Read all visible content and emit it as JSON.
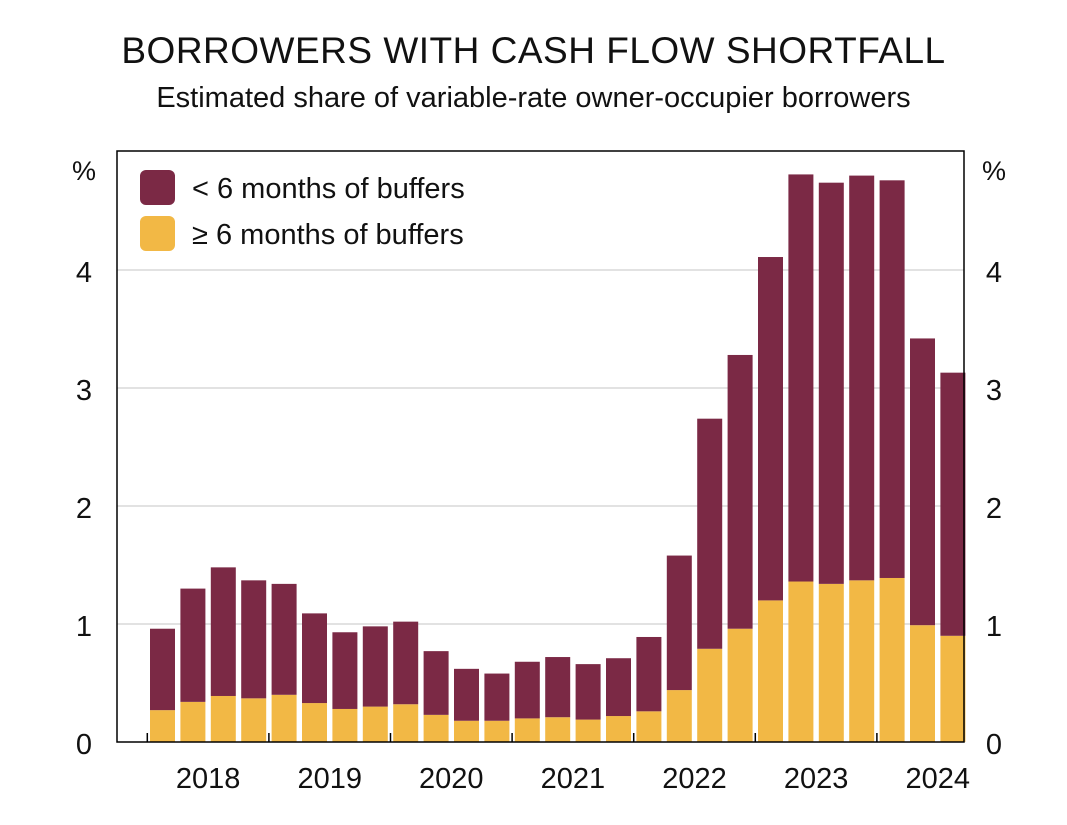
{
  "chart_data": {
    "type": "bar",
    "stacked": true,
    "title": "BORROWERS WITH CASH FLOW SHORTFALL",
    "subtitle": "Estimated share of variable-rate owner-occupier borrowers",
    "unit_left": "%",
    "unit_right": "%",
    "ylim": [
      0,
      5
    ],
    "yticks": [
      0,
      1,
      2,
      3,
      4
    ],
    "grid": true,
    "legend_position": "top-left",
    "year_labels": [
      "2018",
      "2019",
      "2020",
      "2021",
      "2022",
      "2023",
      "2024"
    ],
    "year_label_bar_index": [
      1.5,
      5.5,
      9.5,
      13.5,
      17.5,
      21.5,
      25.5
    ],
    "colors": {
      "lt6": "#7b2945",
      "ge6": "#f2b845",
      "grid": "#d0d0d0",
      "axis": "#000000"
    },
    "series": [
      {
        "name": "< 6 months of buffers",
        "key": "lt6",
        "values": [
          0.69,
          0.96,
          1.09,
          1.0,
          0.94,
          0.76,
          0.65,
          0.68,
          0.7,
          0.54,
          0.44,
          0.4,
          0.48,
          0.51,
          0.47,
          0.49,
          0.63,
          1.14,
          1.95,
          2.32,
          2.91,
          3.45,
          3.4,
          3.43,
          3.37,
          2.43,
          2.23
        ]
      },
      {
        "name": "≥ 6 months of buffers",
        "key": "ge6",
        "values": [
          0.27,
          0.34,
          0.39,
          0.37,
          0.4,
          0.33,
          0.28,
          0.3,
          0.32,
          0.23,
          0.18,
          0.18,
          0.2,
          0.21,
          0.19,
          0.22,
          0.26,
          0.44,
          0.79,
          0.96,
          1.2,
          1.36,
          1.34,
          1.37,
          1.39,
          0.99,
          0.9
        ]
      }
    ]
  }
}
